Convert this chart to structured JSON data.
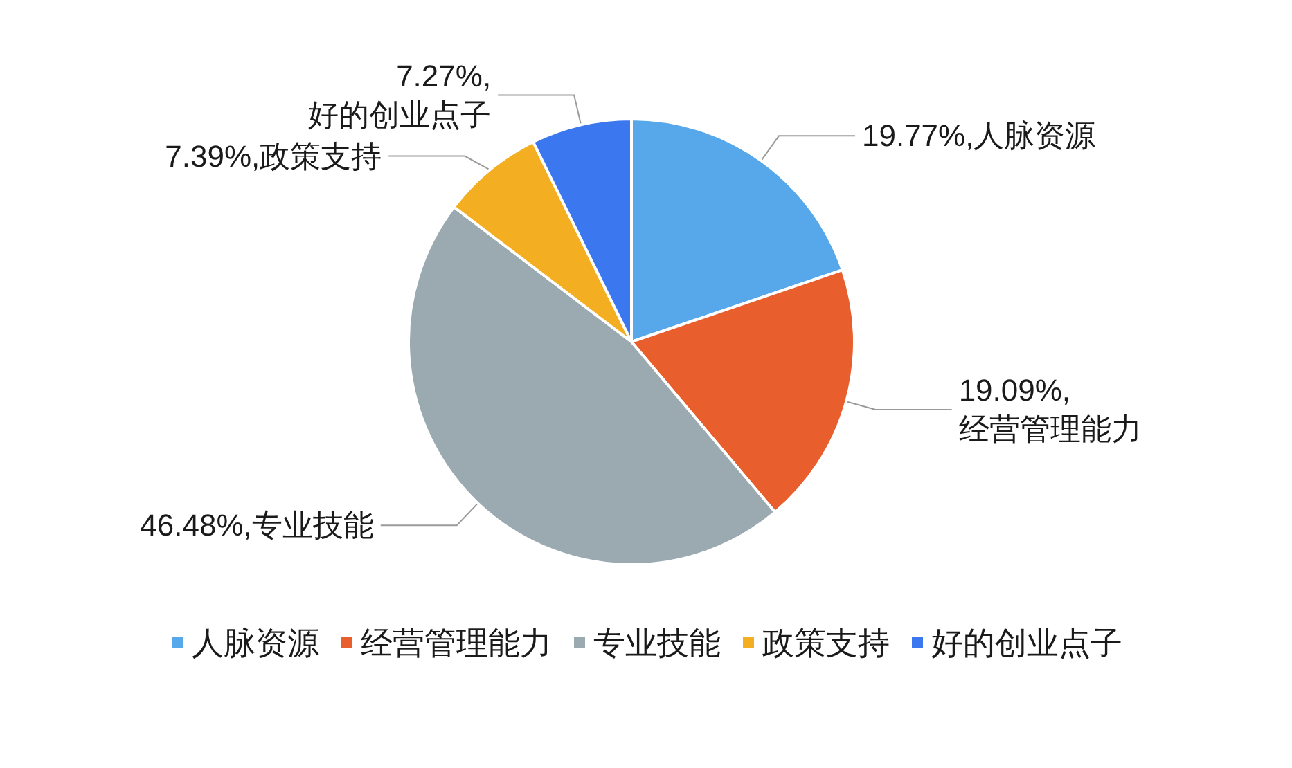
{
  "chart_data": {
    "type": "pie",
    "categories": [
      "人脉资源",
      "经营管理能力",
      "专业技能",
      "政策支持",
      "好的创业点子"
    ],
    "values": [
      19.77,
      19.09,
      46.48,
      7.39,
      7.27
    ],
    "colors": [
      "#57a8ea",
      "#e85e2c",
      "#9aaab0",
      "#f4ae22",
      "#3b78f0"
    ],
    "value_labels": [
      "19.77%,人脉资源",
      "19.09%,\n经营管理能力",
      "46.48%,专业技能",
      "7.39%,政策支持",
      "7.27%,\n好的创业点子"
    ],
    "legend": "bottom"
  }
}
